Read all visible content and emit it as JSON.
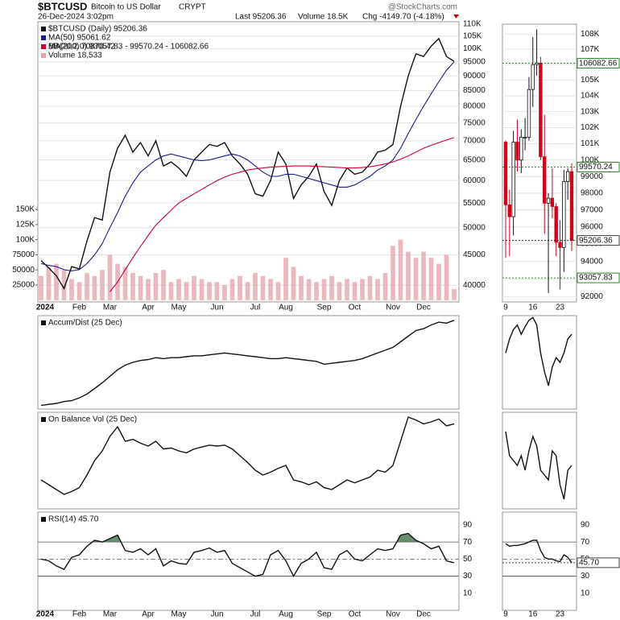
{
  "header": {
    "symbol": "$BTCUSD",
    "name": "Bitcoin to US Dollar",
    "exchange": "CRYPT",
    "source": "@StockCharts.com",
    "datetime": "26-Dec-2024 3:02pm",
    "last": "Last 95206.36",
    "volume": "Volume 18.5K",
    "change": "Chg -4149.70 (-4.18%)"
  },
  "chart_data": [
    {
      "type": "line",
      "log_scale": true,
      "grid": true,
      "categories": [
        "2024",
        null,
        null,
        null,
        null,
        "Feb",
        null,
        null,
        null,
        "Mar",
        null,
        null,
        null,
        null,
        "Apr",
        null,
        null,
        null,
        "May",
        null,
        null,
        null,
        null,
        "Jun",
        null,
        null,
        null,
        null,
        "Jul",
        null,
        null,
        null,
        "Aug",
        null,
        null,
        null,
        null,
        "Sep",
        null,
        null,
        null,
        "Oct",
        null,
        null,
        null,
        null,
        "Nov",
        null,
        null,
        null,
        "Dec",
        null,
        null,
        null,
        null
      ],
      "ylim": [
        37500,
        111000
      ],
      "yticks": [
        40000,
        45000,
        50000,
        55000,
        60000,
        65000,
        70000,
        75000,
        80000,
        85000,
        90000,
        95000,
        {
          "value": 100000,
          "label": "100K"
        },
        {
          "value": 105000,
          "label": "105K"
        },
        {
          "value": 110000,
          "label": "110K"
        }
      ],
      "y2lim": [
        -2900,
        460000
      ],
      "y2ticks": [
        25000,
        50000,
        75000,
        {
          "value": 100000,
          "label": "100K"
        },
        {
          "value": 125000,
          "label": "125K"
        },
        {
          "value": 150000,
          "label": "150K"
        }
      ],
      "series": [
        {
          "name": "$BTCUSD (Daily) 95206.36",
          "color": "#111111",
          "values": [
            44000,
            42800,
            41500,
            39500,
            43000,
            42600,
            47500,
            52000,
            51500,
            62000,
            68000,
            71500,
            67000,
            69500,
            66000,
            70000,
            63500,
            64500,
            63000,
            61000,
            65000,
            67000,
            69000,
            68500,
            69500,
            66000,
            64000,
            61500,
            57000,
            56500,
            60000,
            67000,
            64000,
            56000,
            59000,
            61000,
            64000,
            57500,
            54500,
            60000,
            63000,
            61500,
            62000,
            64000,
            67000,
            67500,
            69000,
            80000,
            90000,
            98000,
            97000,
            101000,
            104000,
            97000,
            95206.36
          ]
        },
        {
          "name": "MA(50) 95061.62",
          "color": "#1a1a8c",
          "values": [
            43500,
            43200,
            43000,
            42500,
            42300,
            42500,
            43500,
            45000,
            47000,
            50000,
            53000,
            56500,
            59500,
            62000,
            63500,
            65000,
            66000,
            66500,
            66000,
            65500,
            65000,
            64800,
            65000,
            65500,
            66000,
            66500,
            66000,
            65000,
            63500,
            62000,
            61000,
            61000,
            61500,
            61500,
            61000,
            60500,
            60000,
            59500,
            59000,
            58500,
            58500,
            59000,
            60000,
            61000,
            62500,
            63500,
            65000,
            68000,
            72000,
            76000,
            80000,
            84000,
            88000,
            92000,
            95061.62
          ]
        },
        {
          "name": "MA(200) 70870.42",
          "color": "#cc0033",
          "values": [
            null,
            null,
            null,
            null,
            null,
            null,
            null,
            null,
            null,
            39000,
            40500,
            42500,
            44500,
            46500,
            48500,
            50500,
            52000,
            53500,
            55000,
            56000,
            57000,
            58000,
            59000,
            60000,
            60800,
            61500,
            62000,
            62500,
            62800,
            63000,
            63200,
            63300,
            63400,
            63500,
            63500,
            63500,
            63400,
            63300,
            63200,
            63100,
            63000,
            63000,
            63100,
            63300,
            63600,
            64000,
            64500,
            65200,
            66000,
            67000,
            68000,
            68800,
            69500,
            70200,
            70870.42
          ]
        },
        {
          "name": "Volume 18,533",
          "color": "#e2a2aa",
          "axis": "y2",
          "values": [
            40000,
            55000,
            60000,
            50000,
            35000,
            30000,
            45000,
            40000,
            50000,
            75000,
            60000,
            55000,
            45000,
            40000,
            35000,
            45000,
            50000,
            30000,
            35000,
            30000,
            40000,
            35000,
            30000,
            30000,
            25000,
            35000,
            40000,
            30000,
            45000,
            40000,
            35000,
            30000,
            70000,
            55000,
            40000,
            35000,
            30000,
            35000,
            40000,
            30000,
            35000,
            30000,
            35000,
            40000,
            35000,
            45000,
            90000,
            100000,
            80000,
            70000,
            80000,
            70000,
            60000,
            75000,
            18533
          ]
        }
      ],
      "annotations": [
        {
          "text": "BB(20,2.0) 93057.83 - 99570.24 - 106082.66",
          "color": "#006400"
        }
      ]
    },
    {
      "type": "line",
      "title": "Accum/Dist (25 Dec)",
      "ylim": [
        0,
        100
      ],
      "series": [
        {
          "color": "#111111",
          "values": [
            4,
            5,
            6,
            8,
            9,
            12,
            16,
            22,
            28,
            35,
            42,
            47,
            50,
            52,
            53,
            55,
            54,
            55,
            55,
            56,
            57,
            57,
            58,
            59,
            60,
            59,
            58,
            57,
            56,
            55,
            54,
            54,
            55,
            54,
            53,
            52,
            51,
            48,
            49,
            50,
            51,
            52,
            54,
            57,
            60,
            63,
            66,
            72,
            78,
            84,
            86,
            90,
            93,
            92,
            95
          ]
        }
      ]
    },
    {
      "type": "line",
      "title": "On Balance Vol (25 Dec)",
      "ylim": [
        0,
        100
      ],
      "series": [
        {
          "color": "#111111",
          "values": [
            30,
            25,
            20,
            15,
            18,
            22,
            35,
            50,
            60,
            75,
            85,
            70,
            72,
            68,
            65,
            70,
            62,
            63,
            60,
            58,
            62,
            64,
            66,
            65,
            66,
            62,
            55,
            48,
            40,
            35,
            38,
            42,
            45,
            30,
            28,
            25,
            28,
            22,
            20,
            25,
            30,
            27,
            30,
            33,
            40,
            38,
            45,
            70,
            95,
            92,
            88,
            90,
            93,
            86,
            88
          ]
        }
      ]
    },
    {
      "type": "line",
      "title": "RSI(14) 45.70",
      "ylim": [
        -10,
        105
      ],
      "yticks": [
        10,
        30,
        50,
        70,
        90
      ],
      "reference_lines": [
        {
          "value": 70
        },
        {
          "value": 50,
          "dashed": true
        },
        {
          "value": 30
        }
      ],
      "fill_above": 70,
      "fill_color": "#4f7d55",
      "series": [
        {
          "color": "#111111",
          "values": [
            50,
            48,
            42,
            38,
            52,
            55,
            65,
            72,
            70,
            74,
            78,
            60,
            58,
            62,
            55,
            62,
            42,
            48,
            45,
            44,
            58,
            60,
            63,
            58,
            60,
            45,
            40,
            35,
            30,
            32,
            55,
            60,
            48,
            30,
            45,
            50,
            58,
            40,
            38,
            55,
            60,
            50,
            48,
            55,
            62,
            60,
            62,
            78,
            80,
            72,
            68,
            62,
            65,
            48,
            45.7
          ]
        }
      ]
    },
    {
      "type": "candlestick",
      "log_scale": true,
      "grid": true,
      "categories": [
        "9",
        null,
        null,
        null,
        null,
        null,
        null,
        "16",
        null,
        null,
        null,
        null,
        null,
        null,
        "23",
        null,
        null,
        null
      ],
      "ylim": [
        91700,
        108650
      ],
      "yticks": [
        92000,
        93000,
        94000,
        95000,
        96000,
        97000,
        98000,
        99000,
        {
          "value": 100000,
          "label": "100K"
        },
        {
          "value": 101000,
          "label": "101K"
        },
        {
          "value": 102000,
          "label": "102K"
        },
        {
          "value": 103000,
          "label": "103K"
        },
        {
          "value": 104000,
          "label": "104K"
        },
        {
          "value": 105000,
          "label": "105K"
        },
        {
          "value": 106000,
          "label": "106K"
        },
        {
          "value": 107000,
          "label": "107K"
        },
        {
          "value": 108000,
          "label": "108K"
        }
      ],
      "open": [
        101100,
        97300,
        96600,
        101100,
        100000,
        101400,
        101400,
        104400,
        106000,
        106100,
        100200,
        97400,
        97700,
        97200,
        95100,
        94800,
        98700,
        99300
      ],
      "high": [
        101200,
        98200,
        101800,
        102500,
        101900,
        102600,
        105200,
        107800,
        108300,
        106500,
        102800,
        98000,
        99500,
        97400,
        96400,
        99400,
        99500,
        99800
      ],
      "low": [
        94200,
        94300,
        95500,
        99300,
        99200,
        100600,
        101200,
        103300,
        105300,
        100000,
        95600,
        92200,
        96500,
        94300,
        92400,
        93400,
        97600,
        94600
      ],
      "close": [
        97300,
        96600,
        101100,
        100000,
        101400,
        101400,
        104400,
        106000,
        106100,
        100200,
        97400,
        97700,
        97200,
        95100,
        94800,
        98700,
        99300,
        95206.36
      ],
      "up_color": "#ffffff",
      "down_color": "#d0021b",
      "markers": [
        {
          "value": 106082.66,
          "color": "#006400"
        },
        {
          "value": 99570.24,
          "color": "#006400"
        },
        {
          "value": 95206.36,
          "color": "#111111"
        },
        {
          "value": 93057.83,
          "color": "#006400"
        }
      ]
    },
    {
      "type": "line",
      "ylim": [
        0,
        100
      ],
      "series": [
        {
          "color": "#111111",
          "values": [
            60,
            75,
            85,
            90,
            80,
            88,
            95,
            98,
            90,
            60,
            40,
            25,
            45,
            55,
            50,
            60,
            75,
            80
          ]
        }
      ]
    },
    {
      "type": "line",
      "ylim": [
        0,
        100
      ],
      "series": [
        {
          "color": "#111111",
          "values": [
            80,
            55,
            50,
            45,
            55,
            40,
            60,
            75,
            65,
            40,
            35,
            30,
            60,
            55,
            25,
            10,
            40,
            45
          ]
        }
      ]
    },
    {
      "type": "line",
      "ylim": [
        -10,
        105
      ],
      "yticks": [
        10,
        30,
        50,
        70,
        90
      ],
      "reference_lines": [
        {
          "value": 70
        },
        {
          "value": 50,
          "dashed": true
        },
        {
          "value": 30
        }
      ],
      "markers": [
        {
          "value": 45.7,
          "label": "45.70",
          "color": "#111111"
        }
      ],
      "series": [
        {
          "color": "#111111",
          "values": [
            68,
            65,
            66,
            66,
            67,
            68,
            70,
            72,
            72,
            60,
            52,
            50,
            50,
            48,
            47,
            55,
            52,
            45.7
          ]
        }
      ]
    }
  ]
}
